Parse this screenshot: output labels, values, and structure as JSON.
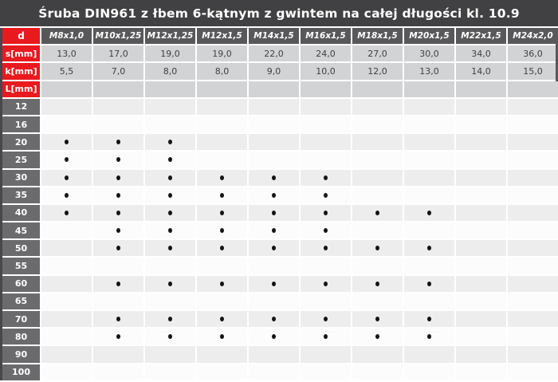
{
  "title": "Śruba DIN961 z łbem 6-kątnym z gwintem na całej długości kl. 10.9",
  "colors": {
    "title_bar": "#414042",
    "edge_border": "#48484a",
    "header_cell": "#58585a",
    "row_label": "#6b6b6d",
    "red": "#e8191f",
    "spec_value_bg": "#d2d3d5",
    "row_light": "#ededee",
    "row_white": "#fcfcfc",
    "text_dark": "#3f3f41",
    "dot": "#141414"
  },
  "table": {
    "corner_label": "d",
    "columns": [
      "M8x1,0",
      "M10x1,25",
      "M12x1,25",
      "M12x1,5",
      "M14x1,5",
      "M16x1,5",
      "M18x1,5",
      "M20x1,5",
      "M22x1,5",
      "M24x2,0"
    ],
    "spec_rows": [
      {
        "label": "s[mm]",
        "values": [
          "13,0",
          "17,0",
          "19,0",
          "19,0",
          "22,0",
          "24,0",
          "27,0",
          "30,0",
          "34,0",
          "36,0"
        ]
      },
      {
        "label": "k[mm]",
        "values": [
          "5,5",
          "7,0",
          "8,0",
          "8,0",
          "9,0",
          "10,0",
          "12,0",
          "13,0",
          "14,0",
          "15,0"
        ]
      },
      {
        "label": "L[mm]",
        "values": [
          "",
          "",
          "",
          "",
          "",
          "",
          "",
          "",
          "",
          ""
        ]
      }
    ],
    "length_rows": [
      {
        "label": "12",
        "dots": [
          0,
          0,
          0,
          0,
          0,
          0,
          0,
          0,
          0,
          0
        ]
      },
      {
        "label": "16",
        "dots": [
          0,
          0,
          0,
          0,
          0,
          0,
          0,
          0,
          0,
          0
        ]
      },
      {
        "label": "20",
        "dots": [
          1,
          1,
          1,
          0,
          0,
          0,
          0,
          0,
          0,
          0
        ]
      },
      {
        "label": "25",
        "dots": [
          1,
          1,
          1,
          0,
          0,
          0,
          0,
          0,
          0,
          0
        ]
      },
      {
        "label": "30",
        "dots": [
          1,
          1,
          1,
          1,
          1,
          1,
          0,
          0,
          0,
          0
        ]
      },
      {
        "label": "35",
        "dots": [
          1,
          1,
          1,
          1,
          1,
          1,
          0,
          0,
          0,
          0
        ]
      },
      {
        "label": "40",
        "dots": [
          1,
          1,
          1,
          1,
          1,
          1,
          1,
          1,
          0,
          0
        ]
      },
      {
        "label": "45",
        "dots": [
          0,
          1,
          1,
          1,
          1,
          1,
          0,
          0,
          0,
          0
        ]
      },
      {
        "label": "50",
        "dots": [
          0,
          1,
          1,
          1,
          1,
          1,
          1,
          1,
          0,
          0
        ]
      },
      {
        "label": "55",
        "dots": [
          0,
          0,
          0,
          0,
          0,
          0,
          0,
          0,
          0,
          0
        ]
      },
      {
        "label": "60",
        "dots": [
          0,
          1,
          1,
          1,
          1,
          1,
          1,
          1,
          0,
          0
        ]
      },
      {
        "label": "65",
        "dots": [
          0,
          0,
          0,
          0,
          0,
          0,
          0,
          0,
          0,
          0
        ]
      },
      {
        "label": "70",
        "dots": [
          0,
          1,
          1,
          1,
          1,
          1,
          1,
          1,
          0,
          0
        ]
      },
      {
        "label": "80",
        "dots": [
          0,
          1,
          1,
          1,
          1,
          1,
          1,
          1,
          0,
          0
        ]
      },
      {
        "label": "90",
        "dots": [
          0,
          0,
          0,
          0,
          0,
          0,
          0,
          0,
          0,
          0
        ]
      },
      {
        "label": "100",
        "dots": [
          0,
          0,
          0,
          0,
          0,
          0,
          0,
          0,
          0,
          0
        ]
      }
    ]
  }
}
